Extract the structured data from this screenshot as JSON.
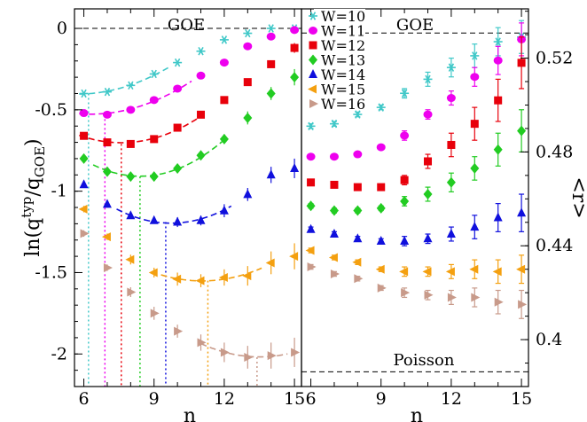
{
  "chart_data": [
    {
      "type": "scatter",
      "panel": "left",
      "xlabel": "n",
      "ylabel": "ln(q^typ/q_GOE)",
      "xlim": [
        5.6,
        15.3
      ],
      "ylim": [
        -2.2,
        0.12
      ],
      "xticks": [
        6,
        9,
        12,
        15
      ],
      "yticks": [
        0,
        -0.5,
        -1,
        -1.5,
        -2
      ],
      "ytick_labels": [
        "0",
        "-0.5",
        "-1",
        "-1.5",
        "-2"
      ],
      "reference_line": {
        "y": 0,
        "label": "GOE"
      },
      "series": [
        {
          "name": "W=10",
          "color": "#40c8c8",
          "marker": "asterisk",
          "x": [
            6,
            7,
            8,
            9,
            10,
            11,
            12,
            13,
            14,
            15
          ],
          "y": [
            -0.4,
            -0.39,
            -0.35,
            -0.28,
            -0.21,
            -0.14,
            -0.07,
            -0.03,
            0.0,
            0.0
          ],
          "err": [
            0.01,
            0.01,
            0.01,
            0.01,
            0.01,
            0.01,
            0.01,
            0.01,
            0.01,
            0.01
          ],
          "fit_x": [
            5.8,
            9.6
          ],
          "fit": [
            -0.4,
            -0.26
          ],
          "marker_vline_x": 6.2
        },
        {
          "name": "W=11",
          "color": "#ee00ee",
          "marker": "circle",
          "x": [
            6,
            7,
            8,
            9,
            10,
            11,
            12,
            13,
            14,
            15
          ],
          "y": [
            -0.52,
            -0.53,
            -0.5,
            -0.44,
            -0.37,
            -0.29,
            -0.21,
            -0.11,
            -0.05,
            -0.01
          ],
          "err": [
            0.01,
            0.01,
            0.01,
            0.01,
            0.01,
            0.01,
            0.01,
            0.01,
            0.02,
            0.02
          ],
          "fit_x": [
            5.8,
            10.6
          ],
          "fit": [
            -0.52,
            -0.35
          ],
          "marker_vline_x": 6.9
        },
        {
          "name": "W=12",
          "color": "#e8000b",
          "marker": "square",
          "x": [
            6,
            7,
            8,
            9,
            10,
            11,
            12,
            13,
            14,
            15
          ],
          "y": [
            -0.66,
            -0.7,
            -0.71,
            -0.68,
            -0.61,
            -0.53,
            -0.44,
            -0.33,
            -0.22,
            -0.12
          ],
          "err": [
            0.01,
            0.01,
            0.01,
            0.01,
            0.01,
            0.01,
            0.02,
            0.02,
            0.02,
            0.03
          ],
          "fit_x": [
            5.8,
            11.0
          ],
          "fit": [
            -0.66,
            -0.49
          ],
          "marker_vline_x": 7.6
        },
        {
          "name": "W=13",
          "color": "#22cc22",
          "marker": "diamond",
          "x": [
            6,
            7,
            8,
            9,
            10,
            11,
            12,
            13,
            14,
            15
          ],
          "y": [
            -0.8,
            -0.88,
            -0.91,
            -0.91,
            -0.86,
            -0.78,
            -0.68,
            -0.55,
            -0.4,
            -0.3
          ],
          "err": [
            0.02,
            0.02,
            0.02,
            0.02,
            0.02,
            0.02,
            0.03,
            0.04,
            0.04,
            0.05
          ],
          "fit_x": [
            6.4,
            12.0
          ],
          "fit": [
            -0.84,
            -0.66
          ],
          "marker_vline_x": 8.4
        },
        {
          "name": "W=14",
          "color": "#1010dd",
          "marker": "triangle-up",
          "x": [
            6,
            7,
            8,
            9,
            10,
            11,
            12,
            13,
            14,
            15
          ],
          "y": [
            -0.96,
            -1.08,
            -1.15,
            -1.18,
            -1.19,
            -1.18,
            -1.12,
            -1.02,
            -0.9,
            -0.86
          ],
          "err": [
            0.02,
            0.02,
            0.02,
            0.02,
            0.03,
            0.03,
            0.04,
            0.04,
            0.05,
            0.06
          ],
          "fit_x": [
            7.4,
            12.3
          ],
          "fit": [
            -1.12,
            -1.09
          ],
          "marker_vline_x": 9.5
        },
        {
          "name": "W=15",
          "color": "#f4a010",
          "marker": "triangle-left",
          "x": [
            6,
            7,
            8,
            9,
            10,
            11,
            12,
            13,
            14,
            15
          ],
          "y": [
            -1.11,
            -1.28,
            -1.42,
            -1.5,
            -1.54,
            -1.55,
            -1.53,
            -1.52,
            -1.44,
            -1.4
          ],
          "err": [
            0.02,
            0.02,
            0.03,
            0.03,
            0.04,
            0.04,
            0.05,
            0.06,
            0.07,
            0.08
          ],
          "fit_x": [
            9.3,
            13.6
          ],
          "fit": [
            -1.51,
            -1.5
          ],
          "marker_vline_x": 11.3
        },
        {
          "name": "W=16",
          "color": "#c89a8a",
          "marker": "triangle-right",
          "x": [
            6,
            7,
            8,
            9,
            10,
            11,
            12,
            13,
            14,
            15
          ],
          "y": [
            -1.26,
            -1.47,
            -1.62,
            -1.75,
            -1.86,
            -1.93,
            -1.99,
            -2.02,
            -2.01,
            -1.99
          ],
          "err": [
            0.02,
            0.02,
            0.03,
            0.04,
            0.04,
            0.05,
            0.06,
            0.07,
            0.08,
            0.09
          ],
          "fit_x": [
            11.0,
            14.7
          ],
          "fit": [
            -1.96,
            -2.01
          ],
          "marker_vline_x": 13.4
        }
      ]
    },
    {
      "type": "scatter",
      "panel": "right",
      "xlabel": "n",
      "ylabel": "<r>",
      "xlim": [
        5.6,
        15.3
      ],
      "ylim": [
        0.38,
        0.541
      ],
      "xticks": [
        6,
        9,
        12,
        15
      ],
      "yticks": [
        0.4,
        0.44,
        0.48,
        0.52
      ],
      "ytick_labels": [
        "0.4",
        "0.44",
        "0.48",
        "0.52"
      ],
      "reference_lines": [
        {
          "y": 0.5307,
          "label": "GOE"
        },
        {
          "y": 0.3863,
          "label": "Poisson"
        }
      ],
      "series": [
        {
          "name": "W=10",
          "color": "#40c8c8",
          "marker": "asterisk",
          "x": [
            6,
            7,
            8,
            9,
            10,
            11,
            12,
            13,
            14,
            15
          ],
          "y": [
            0.491,
            0.492,
            0.496,
            0.499,
            0.505,
            0.511,
            0.516,
            0.521,
            0.527,
            0.529
          ],
          "err": [
            0.001,
            0.001,
            0.001,
            0.001,
            0.002,
            0.003,
            0.004,
            0.005,
            0.006,
            0.007
          ]
        },
        {
          "name": "W=11",
          "color": "#ee00ee",
          "marker": "circle",
          "x": [
            6,
            7,
            8,
            9,
            10,
            11,
            12,
            13,
            14,
            15
          ],
          "y": [
            0.478,
            0.478,
            0.479,
            0.482,
            0.487,
            0.496,
            0.503,
            0.512,
            0.519,
            0.528
          ],
          "err": [
            0.001,
            0.001,
            0.001,
            0.001,
            0.002,
            0.002,
            0.003,
            0.004,
            0.006,
            0.007
          ]
        },
        {
          "name": "W=12",
          "color": "#e8000b",
          "marker": "square",
          "x": [
            6,
            7,
            8,
            9,
            10,
            11,
            12,
            13,
            14,
            15
          ],
          "y": [
            0.467,
            0.466,
            0.465,
            0.465,
            0.468,
            0.476,
            0.483,
            0.492,
            0.502,
            0.518
          ],
          "err": [
            0.001,
            0.001,
            0.001,
            0.001,
            0.002,
            0.003,
            0.005,
            0.007,
            0.009,
            0.011
          ]
        },
        {
          "name": "W=13",
          "color": "#22cc22",
          "marker": "diamond",
          "x": [
            6,
            7,
            8,
            9,
            10,
            11,
            12,
            13,
            14,
            15
          ],
          "y": [
            0.457,
            0.455,
            0.455,
            0.456,
            0.459,
            0.462,
            0.467,
            0.473,
            0.481,
            0.489
          ],
          "err": [
            0.001,
            0.001,
            0.001,
            0.001,
            0.002,
            0.003,
            0.004,
            0.005,
            0.007,
            0.009
          ]
        },
        {
          "name": "W=14",
          "color": "#1010dd",
          "marker": "triangle-up",
          "x": [
            6,
            7,
            8,
            9,
            10,
            11,
            12,
            13,
            14,
            15
          ],
          "y": [
            0.447,
            0.445,
            0.443,
            0.442,
            0.442,
            0.443,
            0.445,
            0.448,
            0.452,
            0.454
          ],
          "err": [
            0.001,
            0.001,
            0.001,
            0.001,
            0.002,
            0.002,
            0.003,
            0.005,
            0.006,
            0.008
          ]
        },
        {
          "name": "W=15",
          "color": "#f4a010",
          "marker": "triangle-left",
          "x": [
            6,
            7,
            8,
            9,
            10,
            11,
            12,
            13,
            14,
            15
          ],
          "y": [
            0.438,
            0.435,
            0.433,
            0.43,
            0.429,
            0.429,
            0.429,
            0.43,
            0.429,
            0.43
          ],
          "err": [
            0.001,
            0.001,
            0.001,
            0.001,
            0.002,
            0.002,
            0.003,
            0.004,
            0.005,
            0.006
          ]
        },
        {
          "name": "W=16",
          "color": "#c89a8a",
          "marker": "triangle-right",
          "x": [
            6,
            7,
            8,
            9,
            10,
            11,
            12,
            13,
            14,
            15
          ],
          "y": [
            0.431,
            0.428,
            0.426,
            0.422,
            0.42,
            0.419,
            0.418,
            0.418,
            0.416,
            0.415
          ],
          "err": [
            0.001,
            0.001,
            0.001,
            0.001,
            0.002,
            0.002,
            0.003,
            0.004,
            0.005,
            0.006
          ]
        }
      ]
    }
  ]
}
